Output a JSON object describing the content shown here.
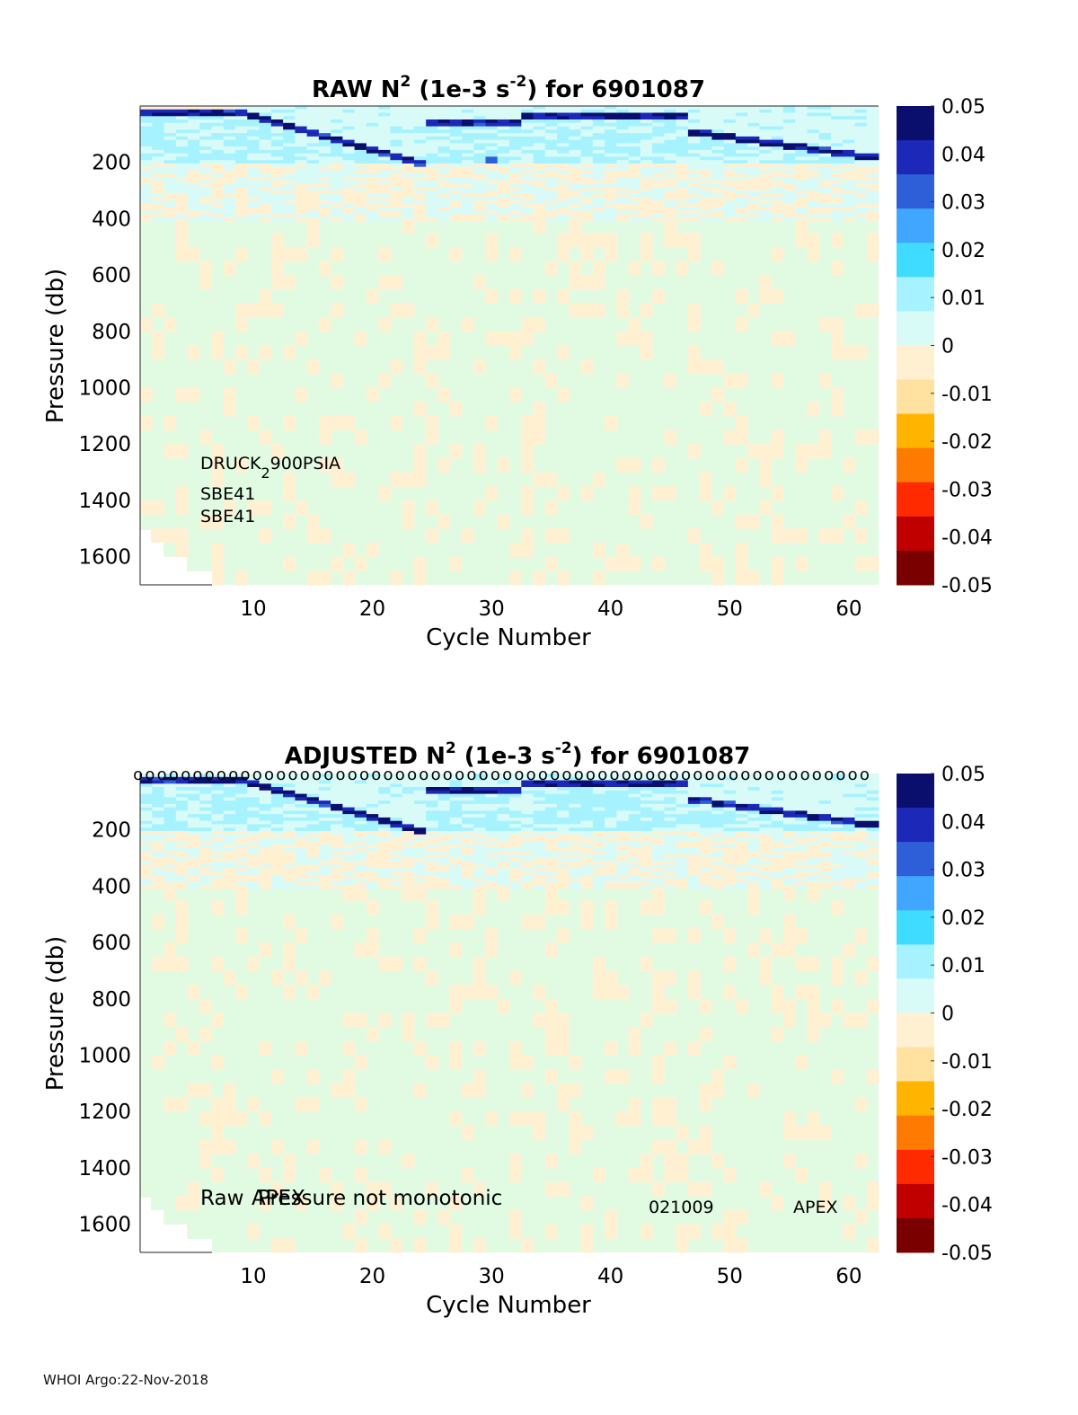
{
  "footer": "WHOI Argo:22-Nov-2018",
  "colors": {
    "background_fill": "#e1fbe3",
    "colormap": [
      "#7a0000",
      "#c00000",
      "#ff2a00",
      "#ff7a00",
      "#ffb400",
      "#ffe2a0",
      "#fff0d2",
      "#d8fbf8",
      "#a6f3ff",
      "#40dcff",
      "#40a6ff",
      "#2f5fd8",
      "#1c29b8",
      "#0a0f6e"
    ]
  },
  "chart_data": [
    {
      "type": "heatmap",
      "title": "RAW N",
      "title_sup_1": "2",
      "title_mid": " (1e-3 s",
      "title_sup_2": "-2",
      "title_end": ") for 6901087",
      "xlabel": "Cycle Number",
      "ylabel": "Pressure (db)",
      "xlim": [
        1,
        62
      ],
      "ylim": [
        1700,
        0
      ],
      "xticks": [
        10,
        20,
        30,
        40,
        50,
        60
      ],
      "yticks": [
        200,
        400,
        600,
        800,
        1000,
        1200,
        1400,
        1600
      ],
      "colorbar": {
        "min": -0.05,
        "max": 0.05,
        "ticks": [
          "0.05",
          "0.04",
          "0.03",
          "0.02",
          "0.01",
          "0",
          "-0.01",
          "-0.02",
          "-0.03",
          "-0.04",
          "-0.05"
        ]
      },
      "annotations": {
        "druck_main": "DRUCK",
        "druck_sub": "2",
        "druck_rest": "900PSIA",
        "sensor_1": "SBE41",
        "sensor_2": "SBE41"
      },
      "description": "Strongly positive N2 (0.04–0.05) near surface 0–120 db, moderate positive (0.005–0.015) in 100–350 db, near-zero with scattered small negative values (~-0.003) below"
    },
    {
      "type": "heatmap",
      "title": "ADJUSTED N",
      "title_sup_1": "2",
      "title_mid": " (1e-3 s",
      "title_sup_2": "-2",
      "title_end": ") for 6901087",
      "xlabel": "Cycle Number",
      "ylabel": "Pressure (db)",
      "xlim": [
        1,
        62
      ],
      "ylim": [
        1700,
        0
      ],
      "xticks": [
        10,
        20,
        30,
        40,
        50,
        60
      ],
      "yticks": [
        200,
        400,
        600,
        800,
        1000,
        1200,
        1400,
        1600
      ],
      "colorbar": {
        "min": -0.05,
        "max": 0.05,
        "ticks": [
          "0.05",
          "0.04",
          "0.03",
          "0.02",
          "0.01",
          "0",
          "-0.01",
          "-0.02",
          "-0.03",
          "-0.04",
          "-0.05"
        ]
      },
      "annotations": {
        "raw_text": "Raw",
        "apex_overlap": "APEX",
        "pressure_text": "Pressure not monotonic",
        "serial": "021009",
        "apex": "APEX"
      },
      "flag_marker": "o",
      "flag_cycles": [
        1,
        2,
        3,
        4,
        5,
        6,
        7,
        8,
        9,
        10,
        11,
        12,
        13,
        14,
        15,
        16,
        17,
        18,
        19,
        20,
        21,
        22,
        23,
        24,
        25,
        26,
        27,
        28,
        29,
        30,
        31,
        32,
        33,
        34,
        35,
        36,
        37,
        38,
        39,
        40,
        41,
        42,
        43,
        44,
        45,
        46,
        47,
        48,
        49,
        50,
        51,
        52,
        53,
        54,
        55,
        56,
        57,
        58,
        59,
        60,
        61,
        62
      ],
      "description": "Same structure as raw panel after adjustment"
    }
  ]
}
